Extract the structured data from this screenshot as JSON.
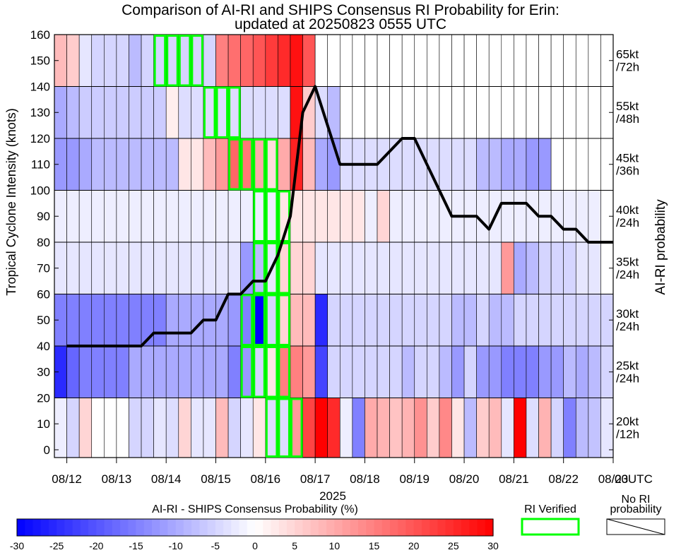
{
  "chart_data": {
    "type": "heatmap",
    "title_line1": "Comparison of AI-RI and SHIPS Consensus RI Probability for Erin:",
    "title_line2": "updated at 20250823 0555 UTC",
    "ylabel": "Tropical Cyclone Intensity (knots)",
    "ylabel_right": "AI-RI probability",
    "xlabel_year": "2025",
    "ylim": [
      0,
      160
    ],
    "yticks": [
      0,
      10,
      20,
      30,
      40,
      50,
      60,
      70,
      80,
      90,
      100,
      110,
      120,
      130,
      140,
      150,
      160
    ],
    "x_time_range_hours": [
      -6,
      264
    ],
    "xticks": [
      {
        "hour": 0,
        "label": "08/12"
      },
      {
        "hour": 24,
        "label": "08/13"
      },
      {
        "hour": 48,
        "label": "08/14"
      },
      {
        "hour": 72,
        "label": "08/15"
      },
      {
        "hour": 96,
        "label": "08/16"
      },
      {
        "hour": 120,
        "label": "08/17"
      },
      {
        "hour": 144,
        "label": "08/18"
      },
      {
        "hour": 168,
        "label": "08/19"
      },
      {
        "hour": 192,
        "label": "08/20"
      },
      {
        "hour": 216,
        "label": "08/21"
      },
      {
        "hour": 240,
        "label": "08/22"
      },
      {
        "hour": 264,
        "label": "08/23"
      }
    ],
    "xtick_suffix": "00UTC",
    "rows": [
      {
        "label": "20kt\n/12h",
        "ymin": -3,
        "ymax": 20
      },
      {
        "label": "25kt\n/24h",
        "ymin": 20,
        "ymax": 40
      },
      {
        "label": "30kt\n/24h",
        "ymin": 40,
        "ymax": 60
      },
      {
        "label": "35kt\n/24h",
        "ymin": 60,
        "ymax": 80
      },
      {
        "label": "40kt\n/24h",
        "ymin": 80,
        "ymax": 100
      },
      {
        "label": "45kt\n/36h",
        "ymin": 100,
        "ymax": 120
      },
      {
        "label": "55kt\n/48h",
        "ymin": 120,
        "ymax": 140
      },
      {
        "label": "65kt\n/72h",
        "ymin": 140,
        "ymax": 160
      }
    ],
    "cell_width_hours": 6,
    "cells": [
      [
        -2,
        -5,
        5,
        0,
        0,
        0,
        -5,
        -5,
        -3,
        -4,
        5,
        -3,
        -3,
        8,
        -5,
        -3,
        3,
        -4,
        -4,
        12,
        22,
        30,
        25,
        -2,
        -15,
        10,
        9,
        7,
        9,
        13,
        6,
        14,
        3,
        -8,
        6,
        8,
        -3,
        30,
        -4,
        9,
        -5,
        -15,
        -8,
        -7,
        -3,
        -4,
        -3,
        -3
      ],
      [
        -25,
        -18,
        -15,
        -15,
        -15,
        -15,
        -10,
        -10,
        -10,
        -10,
        -10,
        -10,
        -10,
        -10,
        -15,
        -12,
        -5,
        3,
        15,
        15,
        12,
        -22,
        -5,
        -5,
        -5,
        -5,
        -5,
        -5,
        -8,
        -5,
        -5,
        -8,
        -12,
        -5,
        -12,
        -12,
        -15,
        -15,
        -15,
        -12,
        -12,
        -8,
        -10,
        -8,
        -5,
        null,
        null,
        null
      ],
      [
        -15,
        -15,
        -15,
        -15,
        -15,
        -15,
        -15,
        -15,
        -15,
        -10,
        -10,
        -10,
        -10,
        -10,
        -12,
        -15,
        -35,
        -5,
        5,
        8,
        8,
        -25,
        -5,
        -5,
        -5,
        -5,
        -5,
        -5,
        -5,
        -5,
        -5,
        -5,
        -8,
        -8,
        -5,
        -8,
        -8,
        -5,
        -5,
        -5,
        -5,
        -5,
        -5,
        -5,
        -5,
        null,
        null,
        null
      ],
      [
        -3,
        -3,
        -3,
        -3,
        -3,
        -3,
        -3,
        -3,
        -3,
        -3,
        -3,
        -3,
        -3,
        -3,
        -3,
        -12,
        -8,
        -3,
        5,
        5,
        5,
        -3,
        -3,
        -3,
        -3,
        -3,
        -3,
        -3,
        -3,
        -3,
        -3,
        -3,
        -3,
        -3,
        -3,
        -3,
        12,
        -10,
        -8,
        -5,
        -5,
        -5,
        -3,
        -3,
        null,
        null,
        null,
        null
      ],
      [
        -2,
        -2,
        -2,
        -2,
        -2,
        -2,
        -2,
        -2,
        -2,
        -2,
        -2,
        -2,
        -2,
        -2,
        -2,
        -2,
        -2,
        -2,
        3,
        3,
        3,
        3,
        3,
        3,
        3,
        -2,
        5,
        -2,
        -2,
        -2,
        -2,
        -2,
        -2,
        -2,
        -2,
        -2,
        -2,
        -2,
        -2,
        -2,
        -2,
        -2,
        -2,
        -2,
        null,
        null,
        null,
        null
      ],
      [
        -12,
        -12,
        -10,
        -8,
        -8,
        -8,
        -8,
        -8,
        -8,
        -8,
        3,
        3,
        8,
        12,
        18,
        16,
        10,
        4,
        10,
        26,
        8,
        -10,
        -12,
        -4,
        -4,
        -4,
        -4,
        -4,
        -4,
        -4,
        -4,
        -4,
        -4,
        -4,
        -8,
        -8,
        -10,
        -10,
        -12,
        -12,
        null,
        null,
        null,
        null,
        null,
        null,
        null,
        null
      ],
      [
        -10,
        -8,
        -6,
        -6,
        -6,
        -6,
        -6,
        -6,
        -6,
        2,
        -4,
        -4,
        -4,
        -4,
        -4,
        -4,
        -4,
        -4,
        -4,
        28,
        6,
        -4,
        -8,
        null,
        null,
        null,
        null,
        null,
        null,
        null,
        null,
        null,
        null,
        null,
        null,
        null,
        null,
        null,
        null,
        null,
        null,
        null,
        null,
        null,
        null,
        null,
        null,
        null
      ],
      [
        8,
        6,
        -3,
        -5,
        -5,
        -5,
        -8,
        -5,
        -5,
        -5,
        -5,
        -5,
        -5,
        15,
        17,
        18,
        20,
        23,
        25,
        28,
        20,
        null,
        null,
        null,
        null,
        null,
        null,
        null,
        null,
        null,
        null,
        null,
        null,
        null,
        null,
        null,
        null,
        null,
        null,
        null,
        null,
        null,
        null,
        null,
        null,
        null,
        null,
        null
      ]
    ],
    "ri_verified": [
      {
        "row": 0,
        "cols": [
          17,
          18,
          19
        ]
      },
      {
        "row": 1,
        "cols": [
          15,
          16,
          17,
          18
        ]
      },
      {
        "row": 2,
        "cols": [
          15,
          16,
          17,
          18
        ]
      },
      {
        "row": 3,
        "cols": [
          16,
          17,
          18
        ]
      },
      {
        "row": 4,
        "cols": [
          16,
          17,
          18
        ]
      },
      {
        "row": 5,
        "cols": [
          14,
          15,
          16,
          17
        ]
      },
      {
        "row": 6,
        "cols": [
          12,
          13,
          14
        ]
      },
      {
        "row": 7,
        "cols": [
          8,
          9,
          10,
          11
        ]
      }
    ],
    "intensity_line": {
      "hours": [
        0,
        6,
        12,
        18,
        24,
        30,
        36,
        42,
        48,
        54,
        60,
        66,
        72,
        78,
        84,
        90,
        96,
        102,
        108,
        114,
        120,
        126,
        132,
        138,
        144,
        150,
        156,
        162,
        168,
        174,
        180,
        186,
        192,
        198,
        204,
        210,
        216,
        222,
        228,
        234,
        240,
        246,
        252,
        258,
        264
      ],
      "knots": [
        40,
        40,
        40,
        40,
        40,
        40,
        40,
        45,
        45,
        45,
        45,
        50,
        50,
        60,
        60,
        65,
        65,
        75,
        90,
        130,
        140,
        125,
        110,
        110,
        110,
        110,
        115,
        120,
        120,
        110,
        100,
        90,
        90,
        90,
        85,
        95,
        95,
        95,
        90,
        90,
        85,
        85,
        80,
        80,
        80
      ]
    },
    "colorbar": {
      "label": "AI-RI - SHIPS Consensus Probability (%)",
      "ticks": [
        -30,
        -25,
        -20,
        -15,
        -10,
        -5,
        0,
        5,
        10,
        15,
        20,
        25,
        30
      ],
      "min": -30,
      "max": 30
    },
    "legend_verified": "RI Verified",
    "legend_nori": "No RI probability",
    "colors": {
      "ri_verified": "#00ff00",
      "line": "#000000",
      "neg": "#0000ff",
      "pos": "#ff0000"
    }
  }
}
